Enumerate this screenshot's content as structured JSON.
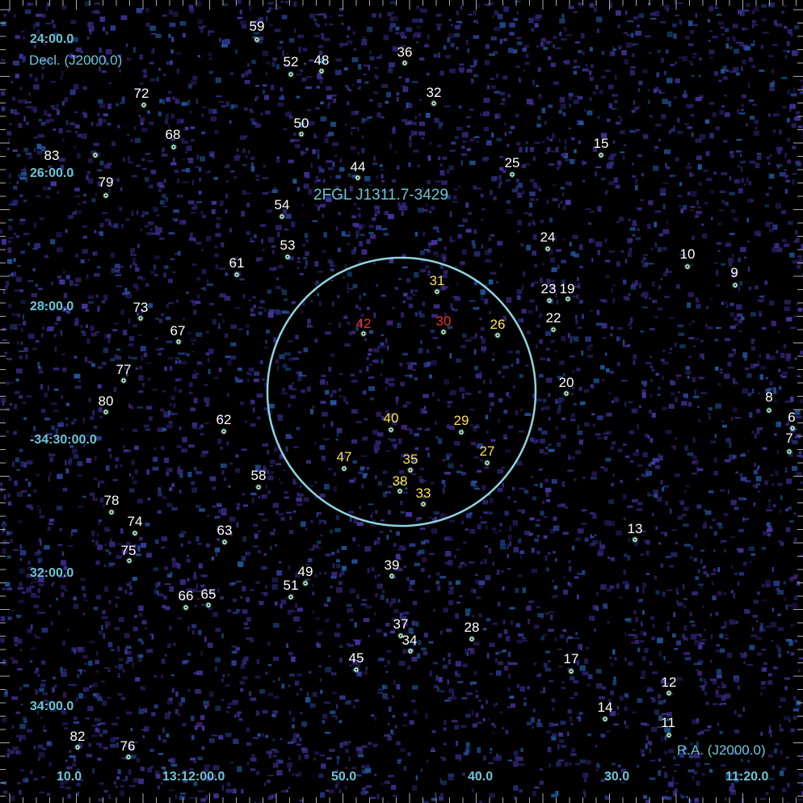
{
  "map": {
    "title": "2FGL J1311.7-3429",
    "ra_axis_title": "R.A. (J2000.0)",
    "dec_axis_title": "Decl. (J2000.0)",
    "ra_ticks": [
      "10.0",
      "13:12:00.0",
      "50.0",
      "40.0",
      "30.0",
      "11:20.0"
    ],
    "dec_ticks": [
      "24:00.0",
      "26:00.0",
      "28:00.0",
      "-34:30:00.0",
      "32:00.0",
      "34:00.0"
    ],
    "colors": {
      "background": "#000000",
      "noise": "#3b2a8a",
      "circle": "#8fd3e0",
      "axis_text": "#6cc4d4",
      "label_default": "#ffffff",
      "label_highlight": "#ffe14d",
      "label_alert": "#e8322a"
    }
  },
  "sources": [
    {
      "id": "59",
      "color": "white"
    },
    {
      "id": "52",
      "color": "white"
    },
    {
      "id": "48",
      "color": "white"
    },
    {
      "id": "36",
      "color": "white"
    },
    {
      "id": "32",
      "color": "white"
    },
    {
      "id": "72",
      "color": "white"
    },
    {
      "id": "50",
      "color": "white"
    },
    {
      "id": "68",
      "color": "white"
    },
    {
      "id": "83",
      "color": "white"
    },
    {
      "id": "79",
      "color": "white"
    },
    {
      "id": "44",
      "color": "white"
    },
    {
      "id": "25",
      "color": "white"
    },
    {
      "id": "15",
      "color": "white"
    },
    {
      "id": "54",
      "color": "white"
    },
    {
      "id": "24",
      "color": "white"
    },
    {
      "id": "53",
      "color": "white"
    },
    {
      "id": "61",
      "color": "white"
    },
    {
      "id": "10",
      "color": "white"
    },
    {
      "id": "9",
      "color": "white"
    },
    {
      "id": "31",
      "color": "yellow"
    },
    {
      "id": "23",
      "color": "white"
    },
    {
      "id": "19",
      "color": "white"
    },
    {
      "id": "73",
      "color": "white"
    },
    {
      "id": "42",
      "color": "red"
    },
    {
      "id": "30",
      "color": "red"
    },
    {
      "id": "26",
      "color": "yellow"
    },
    {
      "id": "22",
      "color": "white"
    },
    {
      "id": "67",
      "color": "white"
    },
    {
      "id": "77",
      "color": "white"
    },
    {
      "id": "20",
      "color": "white"
    },
    {
      "id": "80",
      "color": "white"
    },
    {
      "id": "8",
      "color": "white"
    },
    {
      "id": "40",
      "color": "yellow"
    },
    {
      "id": "29",
      "color": "yellow"
    },
    {
      "id": "62",
      "color": "white"
    },
    {
      "id": "6",
      "color": "white"
    },
    {
      "id": "7",
      "color": "white"
    },
    {
      "id": "27",
      "color": "yellow"
    },
    {
      "id": "47",
      "color": "yellow"
    },
    {
      "id": "35",
      "color": "yellow"
    },
    {
      "id": "58",
      "color": "white"
    },
    {
      "id": "38",
      "color": "yellow"
    },
    {
      "id": "33",
      "color": "yellow"
    },
    {
      "id": "78",
      "color": "white"
    },
    {
      "id": "74",
      "color": "white"
    },
    {
      "id": "13",
      "color": "white"
    },
    {
      "id": "63",
      "color": "white"
    },
    {
      "id": "75",
      "color": "white"
    },
    {
      "id": "39",
      "color": "white"
    },
    {
      "id": "49",
      "color": "white"
    },
    {
      "id": "51",
      "color": "white"
    },
    {
      "id": "66",
      "color": "white"
    },
    {
      "id": "65",
      "color": "white"
    },
    {
      "id": "37",
      "color": "white"
    },
    {
      "id": "28",
      "color": "white"
    },
    {
      "id": "34",
      "color": "white"
    },
    {
      "id": "45",
      "color": "white"
    },
    {
      "id": "17",
      "color": "white"
    },
    {
      "id": "12",
      "color": "white"
    },
    {
      "id": "14",
      "color": "white"
    },
    {
      "id": "11",
      "color": "white"
    },
    {
      "id": "82",
      "color": "white"
    },
    {
      "id": "76",
      "color": "white"
    }
  ]
}
